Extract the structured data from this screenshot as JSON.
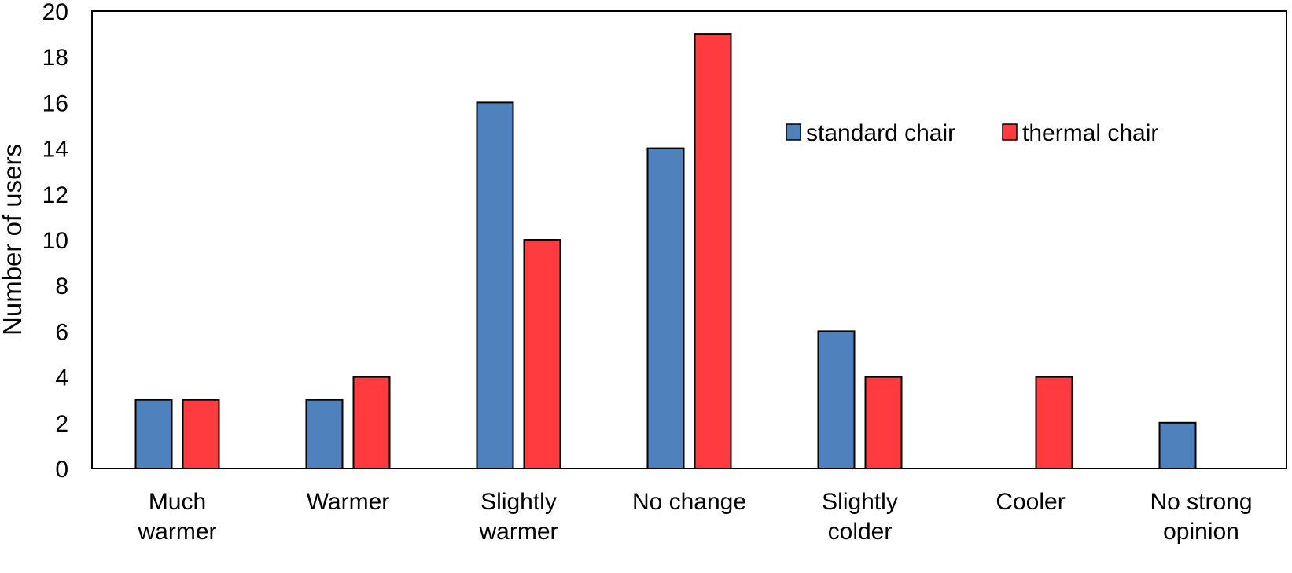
{
  "chart_data": {
    "type": "bar",
    "title": "",
    "xlabel": "",
    "ylabel": "Number of users",
    "ylim": [
      0,
      20
    ],
    "yticks": [
      0,
      2,
      4,
      6,
      8,
      10,
      12,
      14,
      16,
      18,
      20
    ],
    "grid": false,
    "legend_position": "upper-right",
    "categories": [
      [
        "Much",
        "warmer"
      ],
      [
        "Warmer"
      ],
      [
        "Slightly",
        "warmer"
      ],
      [
        "No change"
      ],
      [
        "Slightly",
        "colder"
      ],
      [
        "Cooler"
      ],
      [
        "No strong",
        "opinion"
      ]
    ],
    "series": [
      {
        "name": "standard chair",
        "color": "#4F81BD",
        "values": [
          3,
          3,
          16,
          14,
          6,
          0,
          2
        ]
      },
      {
        "name": "thermal chair",
        "color": "#FF3B3F",
        "values": [
          3,
          4,
          10,
          19,
          4,
          4,
          0
        ]
      }
    ]
  }
}
